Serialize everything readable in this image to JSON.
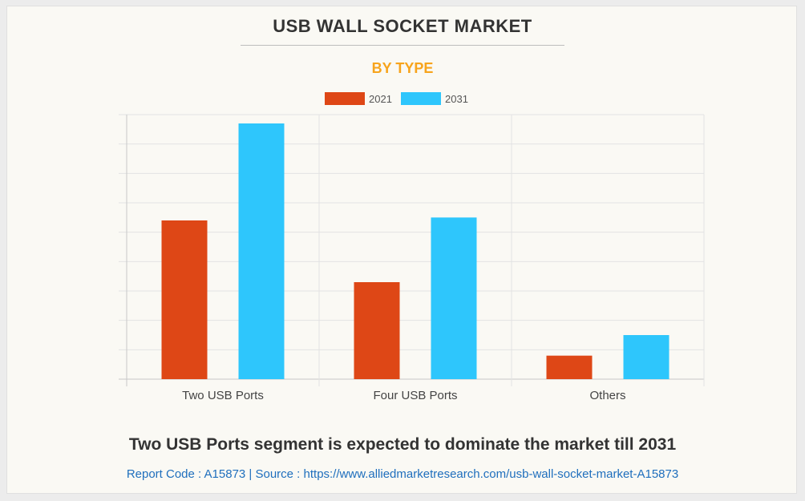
{
  "title": "USB WALL SOCKET MARKET",
  "subtitle": "BY TYPE",
  "headline": "Two USB Ports segment is expected to dominate the market till 2031",
  "footer": "Report Code : A15873  |  Source : https://www.alliedmarketresearch.com/usb-wall-socket-market-A15873",
  "colors": {
    "title": "#333333",
    "subtitle": "#f7a41c",
    "footer_link": "#1f6fbd",
    "grid": "#e3e3e3",
    "axis": "#c8c8c8"
  },
  "chart_data": {
    "type": "bar",
    "categories": [
      "Two USB Ports",
      "Four USB Ports",
      "Others"
    ],
    "series": [
      {
        "name": "2021",
        "color": "#de4716",
        "values": [
          5.4,
          3.3,
          0.8
        ]
      },
      {
        "name": "2031",
        "color": "#2ec6fc",
        "values": [
          8.7,
          5.5,
          1.5
        ]
      }
    ],
    "ylim": [
      0,
      9
    ],
    "grid": true,
    "y_tick_labels": false,
    "legend_position": "top-center"
  }
}
